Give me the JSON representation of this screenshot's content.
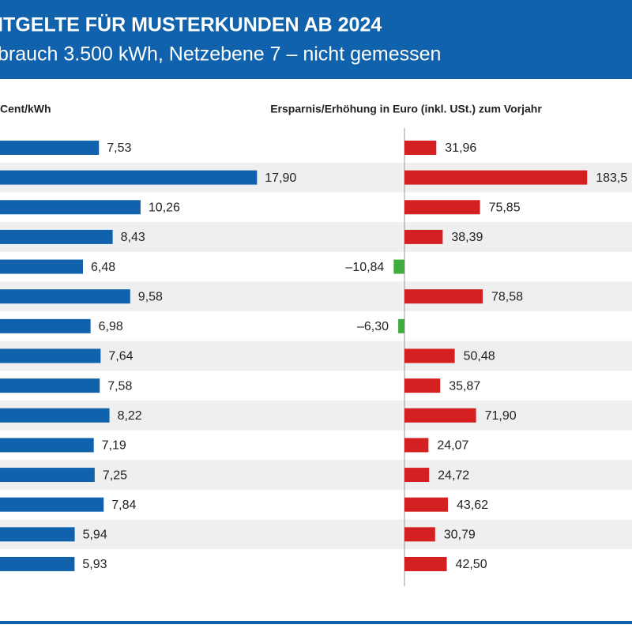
{
  "header": {
    "title": "NTGELTE FÜR MUSTERKUNDEN AB 2024",
    "subtitle": "brauch 3.500 kWh, Netzebene 7 – nicht gemessen"
  },
  "chart_data": [
    {
      "type": "bar",
      "orientation": "horizontal",
      "x_label": "Cent/kWh",
      "color": "#0f62ab",
      "values": [
        7.53,
        17.9,
        10.26,
        8.43,
        6.48,
        9.58,
        6.98,
        7.64,
        7.58,
        8.22,
        7.19,
        7.25,
        7.84,
        5.94,
        5.93
      ],
      "value_labels": [
        "7,53",
        "17,90",
        "10,26",
        "8,43",
        "6,48",
        "9,58",
        "6,98",
        "7,64",
        "7,58",
        "8,22",
        "7,19",
        "7,25",
        "7,84",
        "5,94",
        "5,93"
      ],
      "xlim": [
        0,
        20
      ]
    },
    {
      "type": "bar",
      "orientation": "horizontal",
      "x_label": "Ersparnis/Erhöhung in Euro (inkl. USt.) zum Vorjahr",
      "colors": {
        "positive": "#d42020",
        "negative": "#3fae3f"
      },
      "values": [
        31.96,
        183.5,
        75.85,
        38.39,
        -10.84,
        78.58,
        -6.3,
        50.48,
        35.87,
        71.9,
        24.07,
        24.72,
        43.62,
        30.79,
        42.5
      ],
      "value_labels": [
        "31,96",
        "183,5",
        "75,85",
        "38,39",
        "–10,84",
        "78,58",
        "–6,30",
        "50,48",
        "35,87",
        "71,90",
        "24,07",
        "24,72",
        "43,62",
        "30,79",
        "42,50"
      ],
      "xlim": [
        -20,
        200
      ]
    }
  ]
}
